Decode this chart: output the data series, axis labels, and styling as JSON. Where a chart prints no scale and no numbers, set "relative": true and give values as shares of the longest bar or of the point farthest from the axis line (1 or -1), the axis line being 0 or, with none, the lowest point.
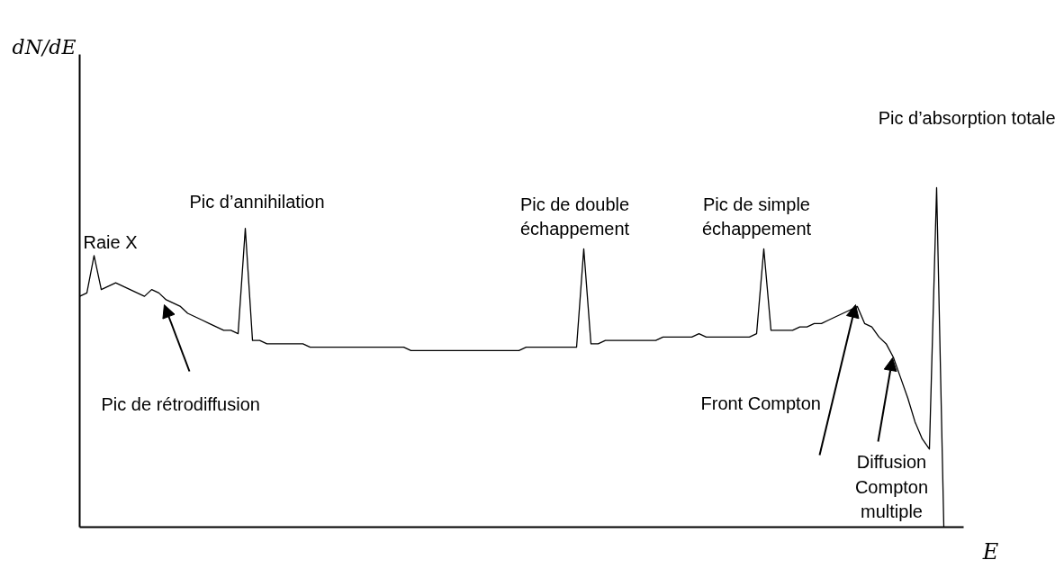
{
  "chart_data": {
    "type": "line",
    "relative": true,
    "xlabel": "E",
    "color": "#000000",
    "categories": [
      null,
      null,
      null,
      null,
      null,
      null,
      null,
      null,
      null,
      null,
      null,
      null,
      null,
      null,
      null,
      null,
      null,
      null,
      null,
      null,
      null,
      null,
      null,
      null,
      null,
      null,
      null,
      null,
      null,
      null,
      null,
      null,
      null,
      null,
      null,
      null,
      null,
      null,
      null,
      null,
      null,
      null,
      null,
      null,
      null,
      null,
      null,
      null,
      null,
      null,
      null,
      null,
      null,
      null,
      null,
      null,
      null,
      null,
      null,
      null,
      null,
      null,
      null,
      null,
      null,
      null,
      null,
      null,
      null,
      null,
      null,
      null,
      null,
      null,
      null,
      null,
      null,
      null,
      null,
      null,
      null,
      null,
      null,
      null,
      null,
      null,
      null,
      null,
      null,
      null,
      null,
      null,
      null,
      null,
      null,
      null,
      null,
      null,
      null,
      null,
      null,
      null,
      null,
      null,
      null,
      null,
      null,
      null,
      null,
      null,
      null,
      null,
      null,
      null,
      null,
      null,
      null,
      null,
      null,
      null,
      null
    ],
    "values": [
      0.68,
      0.69,
      0.8,
      0.7,
      0.71,
      0.72,
      0.71,
      0.7,
      0.69,
      0.68,
      0.7,
      0.69,
      0.67,
      0.66,
      0.65,
      0.63,
      0.62,
      0.61,
      0.6,
      0.59,
      0.58,
      0.58,
      0.57,
      0.88,
      0.55,
      0.55,
      0.54,
      0.54,
      0.54,
      0.54,
      0.54,
      0.54,
      0.53,
      0.53,
      0.53,
      0.53,
      0.53,
      0.53,
      0.53,
      0.53,
      0.53,
      0.53,
      0.53,
      0.53,
      0.53,
      0.53,
      0.52,
      0.52,
      0.52,
      0.52,
      0.52,
      0.52,
      0.52,
      0.52,
      0.52,
      0.52,
      0.52,
      0.52,
      0.52,
      0.52,
      0.52,
      0.52,
      0.53,
      0.53,
      0.53,
      0.53,
      0.53,
      0.53,
      0.53,
      0.53,
      0.82,
      0.54,
      0.54,
      0.55,
      0.55,
      0.55,
      0.55,
      0.55,
      0.55,
      0.55,
      0.55,
      0.56,
      0.56,
      0.56,
      0.56,
      0.56,
      0.57,
      0.56,
      0.56,
      0.56,
      0.56,
      0.56,
      0.56,
      0.56,
      0.57,
      0.82,
      0.58,
      0.58,
      0.58,
      0.58,
      0.59,
      0.59,
      0.6,
      0.6,
      0.61,
      0.62,
      0.63,
      0.64,
      0.65,
      0.6,
      0.59,
      0.56,
      0.54,
      0.5,
      0.44,
      0.38,
      0.31,
      0.26,
      0.23,
      1.0,
      0
    ],
    "annotations": [
      "Raie X",
      "Pic d’annihilation",
      "Pic de double\néchappement",
      "Pic de simple\néchappement",
      "Pic d’absorption totale",
      "Pic de rétrodiffusion",
      "Front Compton",
      "Diffusion\nCompton\nmultiple",
      "dN/dE"
    ]
  }
}
